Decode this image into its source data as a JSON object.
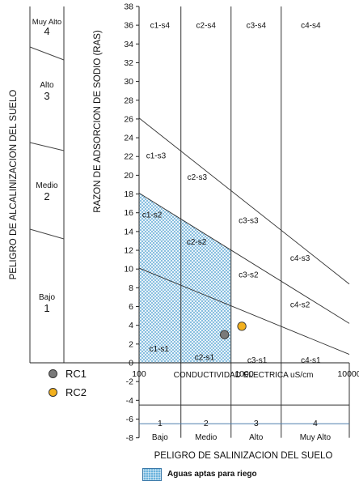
{
  "left_axis_title": "PELIGRO DE ALCALINIZACION  DEL SUELO",
  "alkalinity_classes": [
    {
      "name": "Muy Alto",
      "num": "4"
    },
    {
      "name": "Alto",
      "num": "3"
    },
    {
      "name": "Medio",
      "num": "2"
    },
    {
      "name": "Bajo",
      "num": "1"
    }
  ],
  "salinity_classes": [
    {
      "num": "1",
      "name": "Bajo"
    },
    {
      "num": "2",
      "name": "Medio"
    },
    {
      "num": "3",
      "name": "Alto"
    },
    {
      "num": "4",
      "name": "Muy Alto"
    }
  ],
  "salinity_axis_title": "PELIGRO DE SALINIZACION DEL SUELO",
  "legend": [
    {
      "label": "RC1",
      "color": "#7a7a7a"
    },
    {
      "label": "RC2",
      "color": "#f2b01e"
    }
  ],
  "aptas_label": "Aguas aptas para riego",
  "colors": {
    "apt_zone": "#9ccbe6",
    "rc1": "#7a7a7a",
    "rc2": "#f2b01e"
  },
  "chart_data": {
    "type": "scatter",
    "ylabel": "RAZON DE ADSORCION DE SODIO (RAS)",
    "xlabel": "CONDUCTIVIDAD ELECTRICA uS/cm",
    "x_scale": "log",
    "xlim": [
      100,
      10000
    ],
    "ylim": [
      -8,
      38
    ],
    "x_ticks": [
      "100",
      "1000",
      "10000"
    ],
    "y_ticks": [
      -8,
      -6,
      -4,
      -2,
      0,
      2,
      4,
      6,
      8,
      10,
      12,
      14,
      16,
      18,
      20,
      22,
      24,
      26,
      28,
      30,
      32,
      34,
      36,
      38
    ],
    "class_boundaries_x": [
      250,
      750,
      2250
    ],
    "boundary_lines": [
      {
        "name": "s1-s2",
        "from": [
          100,
          10.1
        ],
        "to": [
          10000,
          0.9
        ]
      },
      {
        "name": "s2-s3",
        "from": [
          100,
          18.1
        ],
        "to": [
          10000,
          4.2
        ]
      },
      {
        "name": "s3-s4",
        "from": [
          100,
          26.1
        ],
        "to": [
          10000,
          8.4
        ]
      }
    ],
    "apt_zone": {
      "x": [
        100,
        750
      ],
      "y_top_at_100": 18.1
    },
    "region_labels": [
      {
        "text": "c1-s4",
        "x": 158,
        "y": 36
      },
      {
        "text": "c2-s4",
        "x": 433,
        "y": 36
      },
      {
        "text": "c3-s4",
        "x": 1300,
        "y": 36
      },
      {
        "text": "c4-s4",
        "x": 4300,
        "y": 36
      },
      {
        "text": "c1-s3",
        "x": 145,
        "y": 22.1
      },
      {
        "text": "c2-s3",
        "x": 357,
        "y": 19.8
      },
      {
        "text": "c3-s3",
        "x": 1100,
        "y": 15.2
      },
      {
        "text": "c4-s3",
        "x": 3400,
        "y": 11.2
      },
      {
        "text": "c1-s2",
        "x": 133,
        "y": 15.8
      },
      {
        "text": "c2-s2",
        "x": 352,
        "y": 12.9
      },
      {
        "text": "c3-s2",
        "x": 1100,
        "y": 9.4
      },
      {
        "text": "c4-s2",
        "x": 3400,
        "y": 6.2
      },
      {
        "text": "c1-s1",
        "x": 155,
        "y": 1.5
      },
      {
        "text": "c2-s1",
        "x": 420,
        "y": 0.6
      },
      {
        "text": "c3-s1",
        "x": 1330,
        "y": 0.3
      },
      {
        "text": "c4-s1",
        "x": 4300,
        "y": 0.3
      }
    ],
    "series": [
      {
        "name": "RC1",
        "x": [
          650
        ],
        "y": [
          3
        ]
      },
      {
        "name": "RC2",
        "x": [
          950
        ],
        "y": [
          3.9
        ]
      }
    ]
  }
}
